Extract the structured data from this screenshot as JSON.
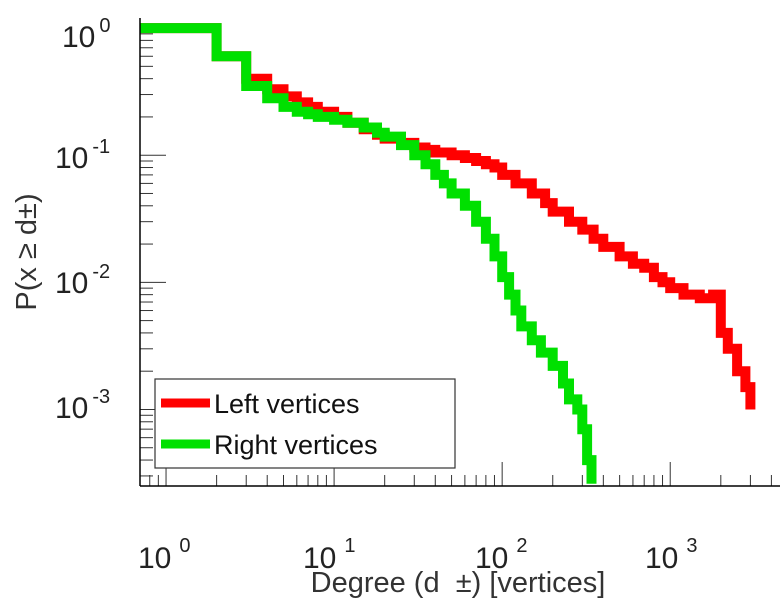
{
  "chart_data": {
    "type": "line",
    "title": "",
    "xlabel": "Degree (d  ±) [vertices]",
    "ylabel": "P(x ≥ d±)",
    "xscale": "log",
    "yscale": "log",
    "xlim": [
      0.7,
      4500
    ],
    "ylim": [
      0.00025,
      1.2
    ],
    "grid": false,
    "legend_position": "bottom-left",
    "x_ticks": [
      {
        "base": "10",
        "exp": "0",
        "value": 1
      },
      {
        "base": "10",
        "exp": "1",
        "value": 10
      },
      {
        "base": "10",
        "exp": "2",
        "value": 100
      },
      {
        "base": "10",
        "exp": "3",
        "value": 1000
      }
    ],
    "y_ticks": [
      {
        "base": "10",
        "exp": "0",
        "value": 1
      },
      {
        "base": "10",
        "exp": "-1",
        "value": 0.1
      },
      {
        "base": "10",
        "exp": "-2",
        "value": 0.01
      },
      {
        "base": "10",
        "exp": "-3",
        "value": 0.001
      }
    ],
    "series": [
      {
        "name": "Left vertices",
        "color": "#ff0000",
        "x": [
          1,
          2,
          3,
          4,
          5,
          6,
          7,
          8,
          10,
          12,
          15,
          18,
          20,
          25,
          30,
          35,
          40,
          50,
          60,
          70,
          80,
          90,
          100,
          120,
          150,
          180,
          200,
          250,
          300,
          350,
          400,
          500,
          600,
          700,
          800,
          900,
          1000,
          1200,
          1500,
          1800,
          2000,
          2200,
          2500,
          2800,
          3000
        ],
        "y": [
          1.0,
          0.6,
          0.4,
          0.33,
          0.29,
          0.26,
          0.24,
          0.22,
          0.2,
          0.18,
          0.16,
          0.145,
          0.135,
          0.125,
          0.115,
          0.11,
          0.105,
          0.1,
          0.095,
          0.09,
          0.085,
          0.08,
          0.07,
          0.06,
          0.05,
          0.042,
          0.036,
          0.03,
          0.026,
          0.022,
          0.019,
          0.016,
          0.014,
          0.013,
          0.011,
          0.01,
          0.009,
          0.008,
          0.0075,
          0.008,
          0.004,
          0.003,
          0.002,
          0.0015,
          0.001
        ]
      },
      {
        "name": "Right vertices",
        "color": "#00e000",
        "x": [
          1,
          2,
          3,
          4,
          5,
          6,
          7,
          8,
          10,
          12,
          15,
          18,
          20,
          25,
          30,
          35,
          40,
          45,
          50,
          60,
          70,
          80,
          90,
          100,
          110,
          120,
          130,
          150,
          170,
          200,
          230,
          250,
          280,
          300,
          320,
          340
        ],
        "y": [
          1.0,
          0.6,
          0.35,
          0.28,
          0.24,
          0.22,
          0.21,
          0.2,
          0.19,
          0.18,
          0.165,
          0.15,
          0.14,
          0.12,
          0.1,
          0.085,
          0.07,
          0.06,
          0.05,
          0.04,
          0.03,
          0.022,
          0.016,
          0.011,
          0.008,
          0.006,
          0.0045,
          0.0035,
          0.0028,
          0.0022,
          0.0016,
          0.0012,
          0.001,
          0.0007,
          0.0004,
          0.00026
        ]
      }
    ]
  }
}
